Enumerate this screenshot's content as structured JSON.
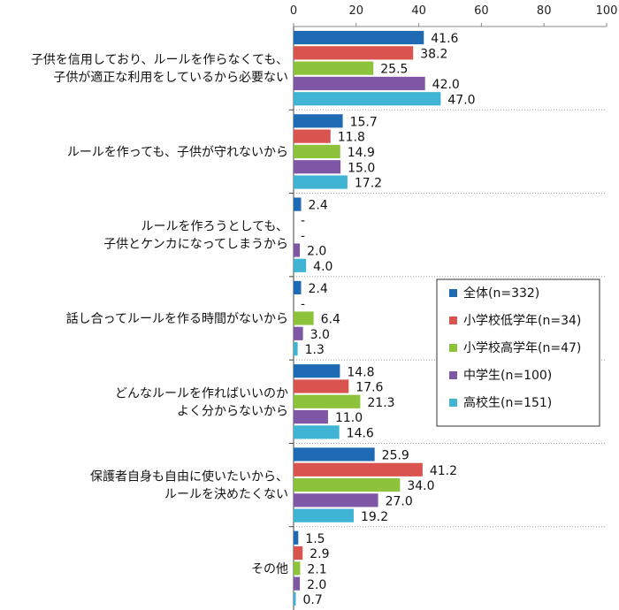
{
  "chart_data": {
    "type": "bar",
    "orientation": "horizontal",
    "title": "",
    "xlabel": "",
    "ylabel": "",
    "xlim": [
      0,
      100
    ],
    "xticks": [
      "0",
      "20",
      "40",
      "60",
      "80",
      "100"
    ],
    "grid": false,
    "legend_position": "right",
    "categories": [
      [
        "子供を信用しており、ルールを作らなくても、",
        "子供が適正な利用をしているから必要ない"
      ],
      [
        "ルールを作っても、子供が守れないから"
      ],
      [
        "ルールを作ろうとしても、",
        "子供とケンカになってしまうから"
      ],
      [
        "話し合ってルールを作る時間がないから"
      ],
      [
        "どんなルールを作ればいいのか",
        "よく分からないから"
      ],
      [
        "保護者自身も自由に使いたいから、",
        "ルールを決めたくない"
      ],
      [
        "その他"
      ]
    ],
    "series": [
      {
        "name": "全体(n=332)",
        "color": "#1f6bb3",
        "values": [
          41.6,
          15.7,
          2.4,
          2.4,
          14.8,
          25.9,
          1.5
        ],
        "labels": [
          "41.6",
          "15.7",
          "2.4",
          "2.4",
          "14.8",
          "25.9",
          "1.5"
        ]
      },
      {
        "name": "小学校低学年(n=34)",
        "color": "#d9534f",
        "values": [
          38.2,
          11.8,
          0,
          0,
          17.6,
          41.2,
          2.9
        ],
        "labels": [
          "38.2",
          "11.8",
          "-",
          "-",
          "17.6",
          "41.2",
          "2.9"
        ]
      },
      {
        "name": "小学校高学年(n=47)",
        "color": "#8dc33b",
        "values": [
          25.5,
          14.9,
          0,
          6.4,
          21.3,
          34.0,
          2.1
        ],
        "labels": [
          "25.5",
          "14.9",
          "-",
          "6.4",
          "21.3",
          "34.0",
          "2.1"
        ]
      },
      {
        "name": "中学生(n=100)",
        "color": "#7e57a6",
        "values": [
          42.0,
          15.0,
          2.0,
          3.0,
          11.0,
          27.0,
          2.0
        ],
        "labels": [
          "42.0",
          "15.0",
          "2.0",
          "3.0",
          "11.0",
          "27.0",
          "2.0"
        ]
      },
      {
        "name": "高校生(n=151)",
        "color": "#3fb4d4",
        "values": [
          47.0,
          17.2,
          4.0,
          1.3,
          14.6,
          19.2,
          0.7
        ],
        "labels": [
          "47.0",
          "17.2",
          "4.0",
          "1.3",
          "14.6",
          "19.2",
          "0.7"
        ]
      }
    ]
  }
}
